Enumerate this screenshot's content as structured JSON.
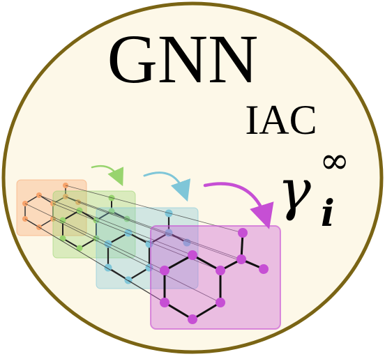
{
  "logo": {
    "title": "GNN",
    "subtitle": "IAC",
    "symbol_base": "γ",
    "symbol_subscript": "i",
    "symbol_superscript": "∞"
  },
  "colors": {
    "background_fill": "#fdf8e8",
    "border": "#7a6414",
    "text": "#000000",
    "layer_orange": "#f7a36b",
    "layer_green": "#98d46e",
    "layer_teal": "#7fc6d8",
    "layer_purple": "#c64fd4",
    "arrow_green": "#98d46e",
    "arrow_teal": "#7fc6d8",
    "arrow_purple": "#c64fd4"
  },
  "icon_names": [
    "molecular-graph-icon",
    "message-passing-arrow-icon"
  ]
}
